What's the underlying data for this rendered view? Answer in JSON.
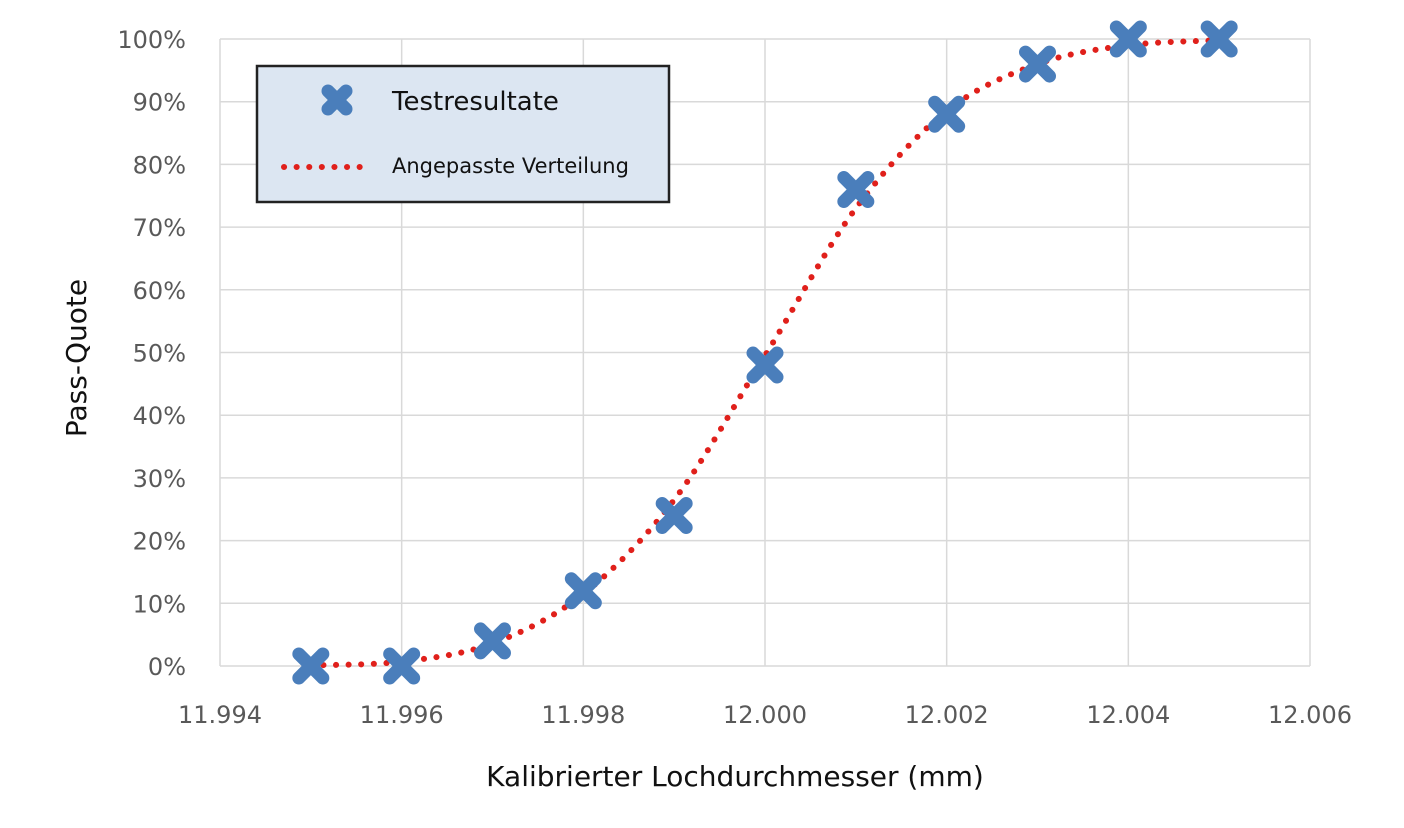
{
  "chart_data": {
    "type": "scatter",
    "xlabel": "Kalibrierter Lochdurchmesser (mm)",
    "ylabel": "Pass-Quote",
    "xlim": [
      11.994,
      12.006
    ],
    "ylim": [
      0,
      100
    ],
    "x_ticks": [
      11.994,
      11.996,
      11.998,
      12.0,
      12.002,
      12.004,
      12.006
    ],
    "x_tick_labels": [
      "11.994",
      "11.996",
      "11.998",
      "12.000",
      "12.002",
      "12.004",
      "12.006"
    ],
    "y_ticks": [
      0,
      10,
      20,
      30,
      40,
      50,
      60,
      70,
      80,
      90,
      100
    ],
    "y_tick_labels": [
      "0%",
      "10%",
      "20%",
      "30%",
      "40%",
      "50%",
      "60%",
      "70%",
      "80%",
      "90%",
      "100%"
    ],
    "grid": true,
    "legend_position": "top-left",
    "series": [
      {
        "name": "Testresultate",
        "marker": "x",
        "color": "#4a7ebb",
        "x": [
          11.995,
          11.996,
          11.997,
          11.998,
          11.999,
          12.0,
          12.001,
          12.002,
          12.003,
          12.004,
          12.005
        ],
        "y": [
          0,
          0,
          4,
          12,
          24,
          48,
          76,
          88,
          96,
          100,
          100
        ]
      },
      {
        "name": "Angepasste Verteilung",
        "style": "dotted-line",
        "color": "#e0201b",
        "x": [
          11.995,
          11.996,
          11.997,
          11.998,
          11.999,
          12.0,
          12.001,
          12.002,
          12.003,
          12.004,
          12.005
        ],
        "y": [
          0.1,
          0.7,
          3.6,
          11.5,
          26.5,
          49.5,
          73.0,
          88.5,
          96.0,
          99.0,
          99.8
        ]
      }
    ]
  }
}
